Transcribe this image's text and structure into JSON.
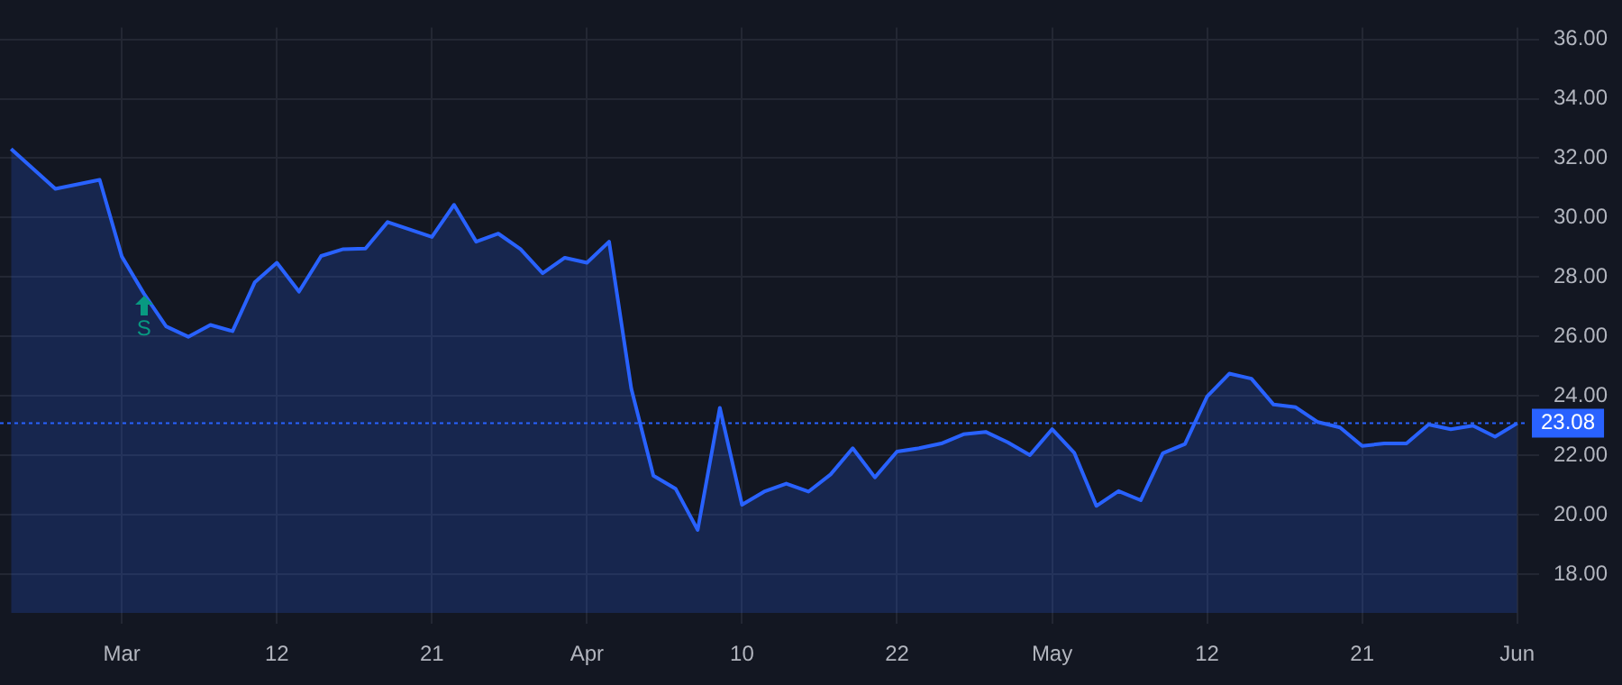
{
  "chart_data": {
    "type": "area",
    "categories": [
      null,
      null,
      null,
      null,
      null,
      "Mar",
      null,
      null,
      null,
      null,
      null,
      null,
      "12",
      null,
      null,
      null,
      null,
      null,
      null,
      "21",
      null,
      null,
      null,
      null,
      null,
      null,
      "Apr",
      null,
      null,
      null,
      null,
      null,
      null,
      "10",
      null,
      null,
      null,
      null,
      null,
      null,
      "22",
      null,
      null,
      null,
      null,
      null,
      null,
      "May",
      null,
      null,
      null,
      null,
      null,
      null,
      "12",
      null,
      null,
      null,
      null,
      null,
      null,
      "21",
      null,
      null,
      null,
      null,
      null,
      null,
      "Jun"
    ],
    "series": [
      {
        "color": "#2962ff",
        "values": [
          32.31,
          null,
          30.97,
          null,
          31.27,
          28.69,
          27.44,
          26.34,
          25.99,
          26.39,
          26.18,
          27.82,
          28.48,
          27.51,
          28.71,
          28.94,
          28.96,
          29.85,
          29.6,
          29.35,
          30.43,
          29.19,
          29.46,
          28.94,
          28.13,
          28.65,
          28.48,
          29.19,
          24.25,
          21.32,
          20.88,
          19.49,
          23.6,
          20.34,
          20.78,
          21.05,
          20.78,
          21.36,
          22.24,
          21.26,
          22.13,
          22.24,
          22.4,
          22.71,
          22.79,
          22.44,
          22.01,
          22.88,
          22.09,
          20.3,
          20.8,
          20.49,
          22.07,
          22.38,
          23.98,
          24.75,
          24.58,
          23.71,
          23.62,
          23.12,
          22.94,
          22.32,
          22.4,
          22.4,
          23.04,
          22.88,
          23.0,
          22.63,
          23.08
        ]
      }
    ],
    "ylim": [
      16.7,
      36.4
    ],
    "yticks": [
      {
        "value": 18,
        "label": "18.00"
      },
      {
        "value": 20,
        "label": "20.00"
      },
      {
        "value": 22,
        "label": "22.00"
      },
      {
        "value": 24,
        "label": "24.00"
      },
      {
        "value": 26,
        "label": "26.00"
      },
      {
        "value": 28,
        "label": "28.00"
      },
      {
        "value": 30,
        "label": "30.00"
      },
      {
        "value": 32,
        "label": "32.00"
      },
      {
        "value": 34,
        "label": "34.00"
      },
      {
        "value": 36,
        "label": "36.00"
      }
    ],
    "ref_lines": [
      {
        "axis": "y",
        "value": 23.08,
        "label": "23.08",
        "color": "#2962ff",
        "line_style": "dotted"
      }
    ],
    "annotations": [
      {
        "text": "S",
        "y": 27.44
      }
    ],
    "grid": true,
    "legend": false,
    "marker": "none",
    "line_style": "solid"
  }
}
